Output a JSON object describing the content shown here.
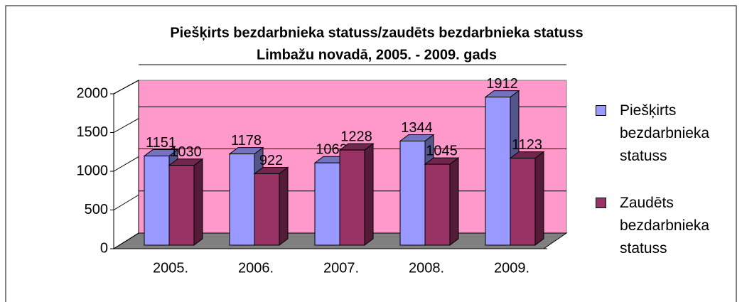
{
  "chart_data": {
    "type": "bar3d",
    "title": "Piešķirts bezdarbnieka statuss/zaudēts bezdarbnieka statuss",
    "subtitle": "Limbažu novadā, 2005. - 2009. gads",
    "categories": [
      "2005.",
      "2006.",
      "2007.",
      "2008.",
      "2009."
    ],
    "series": [
      {
        "name": "Piešķirts bezdarbnieka statuss",
        "color": "#9999ff",
        "values": [
          1151,
          1178,
          1062,
          1344,
          1912
        ]
      },
      {
        "name": "Zaudēts bezdarbnieka statuss",
        "color": "#993366",
        "values": [
          1030,
          922,
          1228,
          1045,
          1123
        ]
      }
    ],
    "ylim": [
      0,
      2000
    ],
    "yticks": [
      0,
      500,
      1000,
      1500,
      2000
    ],
    "grid": true,
    "legend": "right"
  }
}
